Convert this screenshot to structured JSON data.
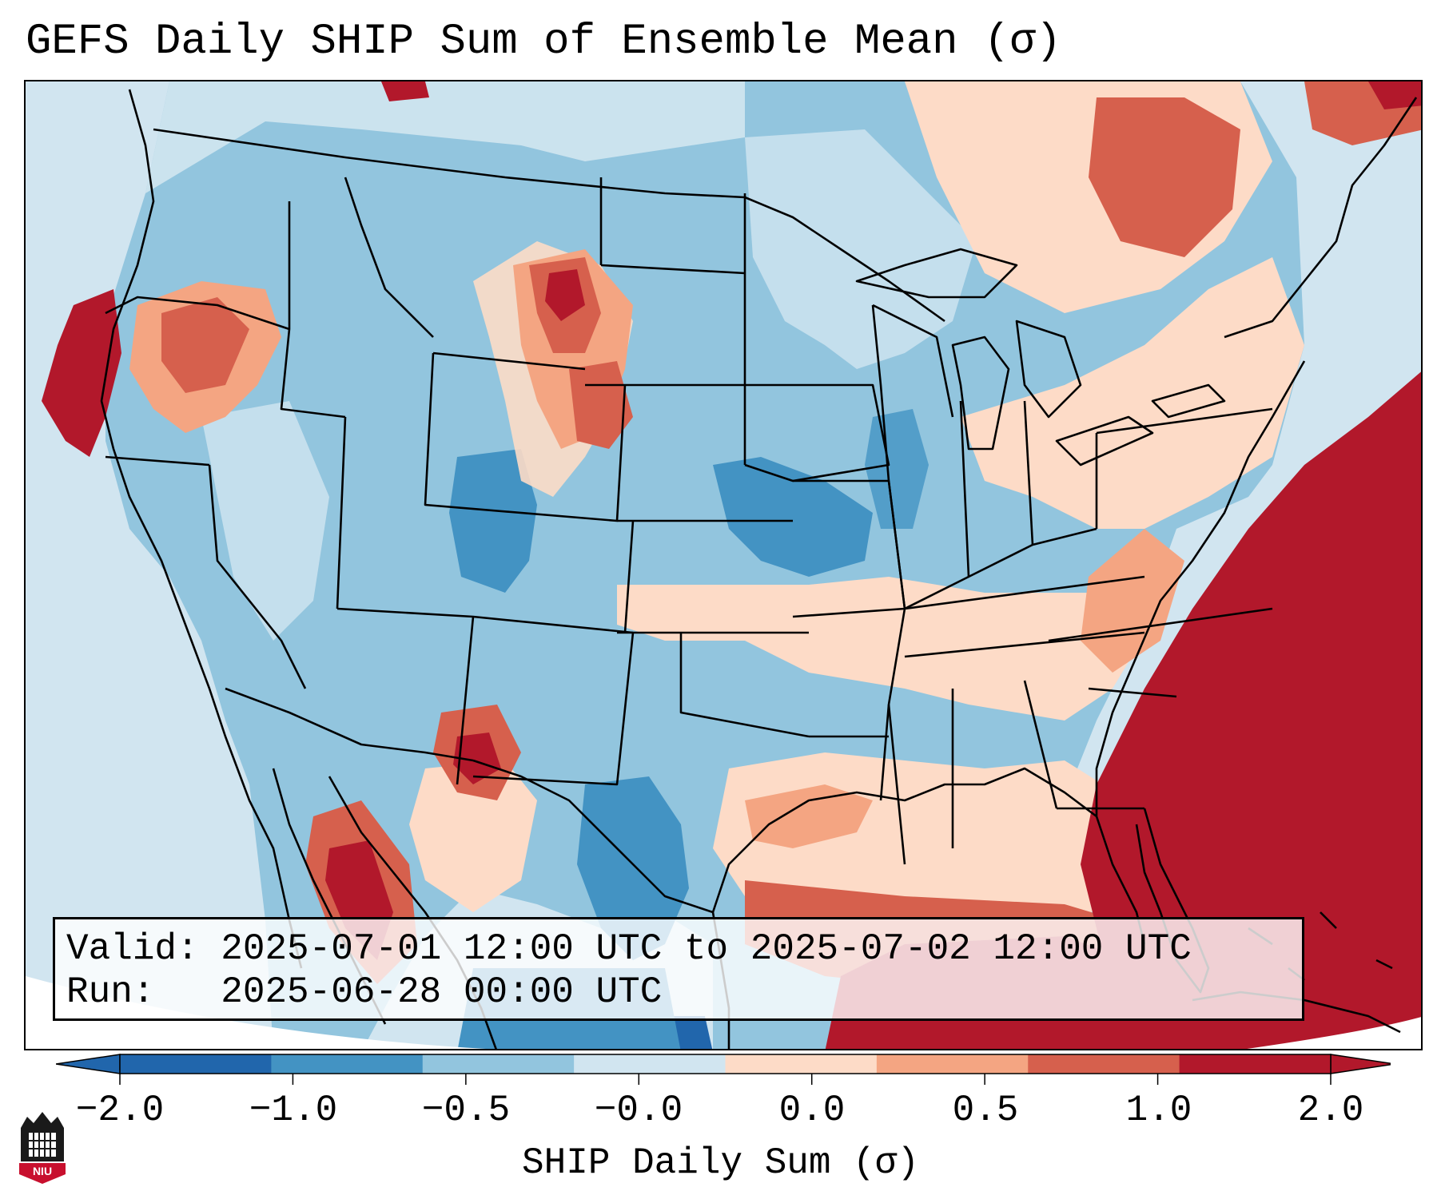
{
  "title": "GEFS Daily SHIP Sum of Ensemble Mean (σ)",
  "info": {
    "valid_line": "Valid: 2025-07-01 12:00 UTC to 2025-07-02 12:00 UTC",
    "run_line": "Run:   2025-06-28 00:00 UTC"
  },
  "colorbar": {
    "label": "SHIP Daily Sum (σ)",
    "ticks": [
      "−2.0",
      "−1.0",
      "−0.5",
      "−0.0",
      "0.0",
      "0.5",
      "1.0",
      "2.0"
    ],
    "colors": [
      "#2166ac",
      "#4393c3",
      "#92c5de",
      "#d1e5f0",
      "#fddbc7",
      "#f4a582",
      "#d6604d",
      "#b2182b"
    ],
    "extend": "both"
  },
  "logo": {
    "text": "NIU"
  },
  "map": {
    "region": "Continental United States",
    "field": "SHIP daily sum anomaly",
    "palette": {
      "ocean": "#d1e5f0",
      "strong_negative": "#2166ac",
      "negative": "#4393c3",
      "weak_negative": "#92c5de",
      "weak_positive": "#fddbc7",
      "positive": "#f4a582",
      "strong_positive_1": "#d6604d",
      "strong_positive_2": "#b2182b",
      "border": "#000000"
    }
  }
}
